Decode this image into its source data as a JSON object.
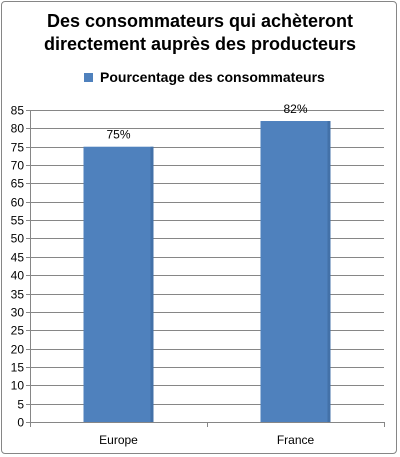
{
  "chart_data": {
    "type": "bar",
    "title_lines": [
      "Des consommateurs qui achèteront",
      "directement auprès des producteurs"
    ],
    "categories": [
      "Europe",
      "France"
    ],
    "series": [
      {
        "name": "Pourcentage des consommateurs",
        "values": [
          75,
          82
        ],
        "data_labels": [
          "75%",
          "82%"
        ],
        "color": "#4f81bd"
      }
    ],
    "ylim": [
      0,
      85
    ],
    "yticks": [
      0,
      5,
      10,
      15,
      20,
      25,
      30,
      35,
      40,
      45,
      50,
      55,
      60,
      65,
      70,
      75,
      80,
      85
    ],
    "ytick_labels": [
      "0",
      "5",
      "10",
      "15",
      "20",
      "25",
      "30",
      "35",
      "40",
      "45",
      "50",
      "55",
      "60",
      "65",
      "70",
      "75",
      "80",
      "85"
    ],
    "grid": true,
    "legend_position": "top",
    "xlabel": "",
    "ylabel": ""
  }
}
